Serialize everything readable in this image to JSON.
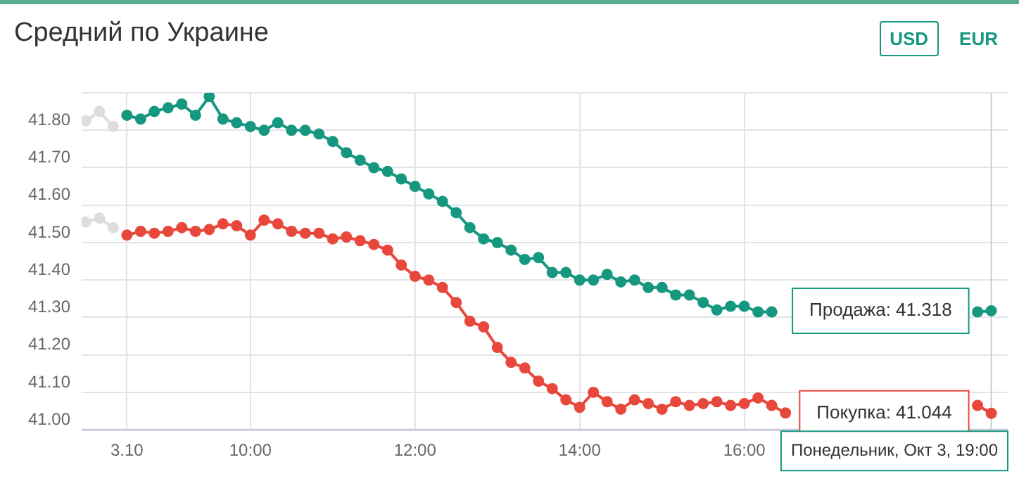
{
  "chart_data": {
    "type": "line",
    "title": "Средний по Украине",
    "x": [
      "--10-03T08:30",
      "--10-03T08:40",
      "--10-03T08:50",
      "--10-03T09:00",
      "--10-03T09:10",
      "--10-03T09:20",
      "--10-03T09:30",
      "--10-03T09:40",
      "--10-03T09:50",
      "--10-03T10:00",
      "--10-03T10:10",
      "--10-03T10:20",
      "--10-03T10:30",
      "--10-03T10:40",
      "--10-03T10:50",
      "--10-03T11:00",
      "--10-03T11:10",
      "--10-03T11:20",
      "--10-03T11:30",
      "--10-03T11:40",
      "--10-03T11:50",
      "--10-03T12:00",
      "--10-03T12:10",
      "--10-03T12:20",
      "--10-03T12:30",
      "--10-03T12:40",
      "--10-03T12:50",
      "--10-03T13:00",
      "--10-03T13:10",
      "--10-03T13:20",
      "--10-03T13:30",
      "--10-03T13:40",
      "--10-03T13:50",
      "--10-03T14:00",
      "--10-03T14:10",
      "--10-03T14:20",
      "--10-03T14:30",
      "--10-03T14:40",
      "--10-03T14:50",
      "--10-03T15:00",
      "--10-03T15:10",
      "--10-03T15:20",
      "--10-03T15:30",
      "--10-03T15:40",
      "--10-03T15:50",
      "--10-03T16:00",
      "--10-03T16:10",
      "--10-03T16:20",
      "--10-03T16:30",
      "--10-03T16:40",
      "--10-03T16:50",
      "--10-03T17:00",
      "--10-03T17:10",
      "--10-03T17:20",
      "--10-03T17:30",
      "--10-03T17:40",
      "--10-03T17:50",
      "--10-03T18:00",
      "--10-03T18:10",
      "--10-03T18:20",
      "--10-03T18:30",
      "--10-03T18:40",
      "--10-03T18:50",
      "--10-03T19:00"
    ],
    "series": [
      {
        "color": "#16977f",
        "values": [
          41.84,
          41.83,
          41.85,
          41.86,
          41.87,
          41.84,
          41.89,
          41.83,
          41.82,
          41.81,
          41.8,
          41.82,
          41.8,
          41.8,
          41.79,
          41.77,
          41.74,
          41.72,
          41.7,
          41.69,
          41.67,
          41.65,
          41.63,
          41.61,
          41.58,
          41.54,
          41.51,
          41.5,
          41.48,
          41.455,
          41.46,
          41.42,
          41.42,
          41.4,
          41.4,
          41.415,
          41.395,
          41.4,
          41.38,
          41.38,
          41.36,
          41.36,
          41.34,
          41.32,
          41.33,
          41.33,
          41.315,
          41.315,
          null,
          null,
          null,
          null,
          null,
          null,
          null,
          null,
          null,
          null,
          null,
          null,
          null,
          null,
          41.315,
          41.318
        ]
      },
      {
        "color": "#e8473c",
        "values": [
          41.52,
          41.53,
          41.525,
          41.53,
          41.54,
          41.53,
          41.535,
          41.55,
          41.545,
          41.52,
          41.56,
          41.55,
          41.53,
          41.525,
          41.525,
          41.51,
          41.515,
          41.505,
          41.495,
          41.48,
          41.44,
          41.41,
          41.4,
          41.38,
          41.34,
          41.29,
          41.275,
          41.22,
          41.18,
          41.165,
          41.13,
          41.11,
          41.08,
          41.06,
          41.1,
          41.075,
          41.055,
          41.08,
          41.07,
          41.055,
          41.075,
          41.065,
          41.07,
          41.075,
          41.065,
          41.07,
          41.085,
          41.065,
          41.045,
          null,
          null,
          null,
          null,
          null,
          null,
          null,
          null,
          null,
          null,
          null,
          null,
          null,
          41.065,
          41.044
        ]
      },
      {
        "color": "#dddddd",
        "x": [
          "--10-03T08:00",
          "--10-03T08:10",
          "--10-03T08:20"
        ],
        "values": [
          41.825,
          41.85,
          41.81
        ]
      },
      {
        "color": "#dddddd",
        "x": [
          "--10-03T08:00",
          "--10-03T08:10",
          "--10-03T08:20"
        ],
        "values": [
          41.555,
          41.565,
          41.54
        ]
      }
    ],
    "xlim": [
      "--10-03T07:57",
      "--10-03T19:12"
    ],
    "xticks": [
      {
        "value": "--10-03T08:30",
        "label": "3.10"
      },
      {
        "value": "--10-03T10:00",
        "label": "10:00"
      },
      {
        "value": "--10-03T12:00",
        "label": "12:00"
      },
      {
        "value": "--10-03T14:00",
        "label": "14:00"
      },
      {
        "value": "--10-03T16:00",
        "label": "16:00"
      }
    ],
    "ylim": [
      41.0,
      41.9
    ],
    "yticks": [
      {
        "value": 41.0,
        "label": "41.00"
      },
      {
        "value": 41.1,
        "label": "41.10"
      },
      {
        "value": 41.2,
        "label": "41.20"
      },
      {
        "value": 41.3,
        "label": "41.30"
      },
      {
        "value": 41.4,
        "label": "41.40"
      },
      {
        "value": 41.5,
        "label": "41.50"
      },
      {
        "value": 41.6,
        "label": "41.60"
      },
      {
        "value": 41.7,
        "label": "41.70"
      },
      {
        "value": 41.8,
        "label": "41.80"
      },
      {
        "value": 41.9,
        "label": null
      }
    ],
    "ref_lines": [
      {
        "axis": "x",
        "value": "--10-03T19:00",
        "color": "#cccccc"
      }
    ],
    "annotations": [
      {
        "text": "Продажа: 41.318",
        "x": "--10-03T19:00",
        "y": 41.318
      },
      {
        "text": "Покупка: 41.044",
        "x": "--10-03T19:00",
        "y": 41.044
      },
      "Понедельник, Окт 3, 19:00",
      "USD",
      "EUR"
    ],
    "grid": true,
    "legend": false,
    "marker": "circle",
    "line_style": "solid"
  }
}
